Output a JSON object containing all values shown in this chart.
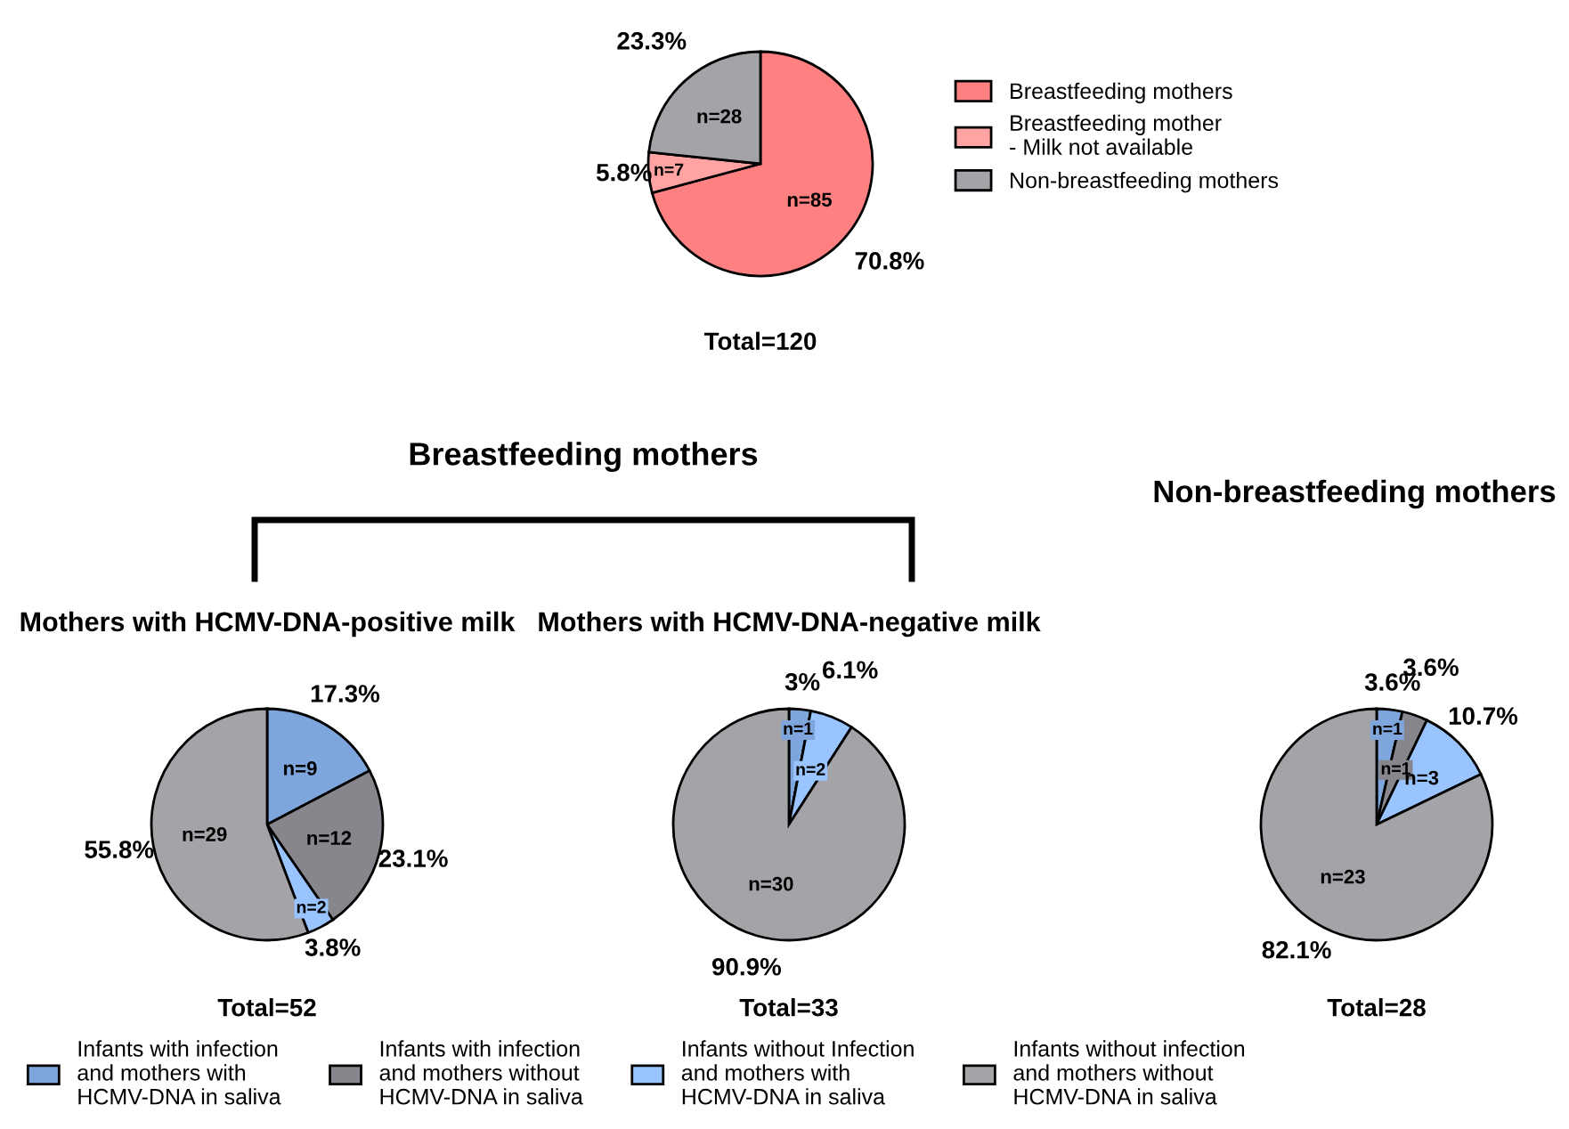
{
  "chart_data": [
    {
      "type": "pie",
      "categories": [
        "Breastfeeding mothers",
        "Breastfeeding mother\n- Milk not available",
        "Non-breastfeeding mothers"
      ],
      "values": [
        85,
        7,
        28
      ],
      "colors": [
        "#ff8080",
        "#ffa3a3",
        "#a3a3a8"
      ],
      "value_labels": [
        "n=85",
        "n=7",
        "n=28"
      ],
      "annotations": [
        "70.8%",
        "5.8%",
        "23.3%"
      ],
      "xlabel": "Total=120",
      "legend": "right"
    },
    {
      "type": "other",
      "title": "Breastfeeding mothers"
    },
    {
      "type": "other",
      "title": "Non-breastfeeding mothers"
    },
    {
      "type": "pie",
      "title": "Mothers with HCMV-DNA-positive milk",
      "categories": [
        "Infants with infection\nand mothers with\nHCMV-DNA in saliva",
        "Infants with infection\nand mothers without\nHCMV-DNA in saliva",
        "Infants without Infection\nand mothers with\nHCMV-DNA in saliva",
        "Infants without infection\nand mothers without\nHCMV-DNA in saliva"
      ],
      "values": [
        9,
        12,
        2,
        29
      ],
      "colors": [
        "#7fa6dc",
        "#86868c",
        "#99c4ff",
        "#a3a3a8"
      ],
      "value_labels": [
        "n=9",
        "n=12",
        "n=2",
        "n=29"
      ],
      "annotations": [
        "17.3%",
        "23.1%",
        "3.8%",
        "55.8%"
      ],
      "xlabel": "Total=52",
      "legend": "bottom"
    },
    {
      "type": "pie",
      "title": "Mothers with HCMV-DNA-negative milk",
      "categories": [
        null,
        null,
        null,
        null
      ],
      "values": [
        1,
        0,
        2,
        30
      ],
      "colors": [
        "#7fa6dc",
        "#86868c",
        "#99c4ff",
        "#a3a3a8"
      ],
      "value_labels": [
        "n=1",
        null,
        "n=2",
        "n=30"
      ],
      "annotations": [
        "3%",
        "6.1%",
        "90.9%"
      ],
      "xlabel": "Total=33"
    },
    {
      "type": "pie",
      "categories": [
        null,
        null,
        null,
        null
      ],
      "values": [
        1,
        1,
        3,
        23
      ],
      "colors": [
        "#7fa6dc",
        "#86868c",
        "#99c4ff",
        "#a3a3a8"
      ],
      "value_labels": [
        "n=1",
        "n=1",
        "n=3",
        "n=23"
      ],
      "annotations": [
        "3.6%",
        "3.6%",
        "10.7%",
        "82.1%"
      ],
      "xlabel": "Total=28"
    }
  ]
}
